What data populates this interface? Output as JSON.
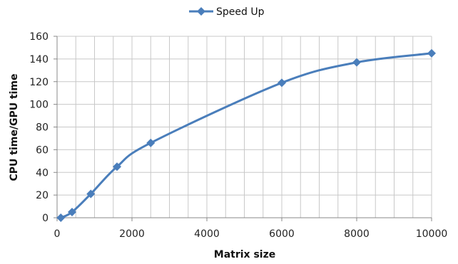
{
  "chart_data": {
    "type": "line",
    "title": "",
    "xlabel": "Matrix size",
    "ylabel": "CPU time/GPU time",
    "xlim": [
      0,
      10000
    ],
    "ylim": [
      0,
      160
    ],
    "xticks": [
      0,
      2000,
      4000,
      6000,
      8000,
      10000
    ],
    "yticks": [
      0,
      20,
      40,
      60,
      80,
      100,
      120,
      140,
      160
    ],
    "grid": true,
    "legend_position": "top",
    "series": [
      {
        "name": "Speed Up",
        "color": "#4a7ebb",
        "marker": "diamond",
        "smooth": true,
        "x": [
          100,
          400,
          900,
          1600,
          2500,
          6000,
          8000,
          10000
        ],
        "y": [
          0,
          5,
          21,
          45,
          66,
          119,
          137,
          145
        ]
      }
    ]
  }
}
